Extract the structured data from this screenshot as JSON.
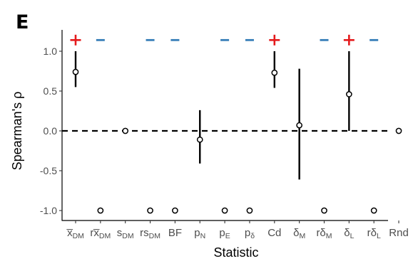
{
  "chart_data": {
    "type": "scatter",
    "panel_label": "E",
    "xlabel": "Statistic",
    "ylabel": "Spearman's ρ",
    "ylim": [
      -1.12,
      1.22
    ],
    "yticks": [
      -1.0,
      -0.5,
      0.0,
      0.5,
      1.0
    ],
    "ytick_labels": [
      "-1.0",
      "-0.5",
      "0.0",
      "0.5",
      "1.0"
    ],
    "reference_line": {
      "y": 0,
      "style": "dashed"
    },
    "grid": false,
    "categories": [
      {
        "base": "x̅",
        "sub": "DM"
      },
      {
        "base": "rx̅",
        "sub": "DM"
      },
      {
        "base": "s",
        "sub": "DM"
      },
      {
        "base": "rs",
        "sub": "DM"
      },
      {
        "base": "BF",
        "sub": ""
      },
      {
        "base": "p",
        "sub": "N"
      },
      {
        "base": "p",
        "sub": "E"
      },
      {
        "base": "p",
        "sub": "δ"
      },
      {
        "base": "Cd",
        "sub": ""
      },
      {
        "base": "δ",
        "sub": "M"
      },
      {
        "base": "rδ",
        "sub": "M"
      },
      {
        "base": "δ",
        "sub": "L"
      },
      {
        "base": "rδ",
        "sub": "L"
      },
      {
        "base": "Rnd",
        "sub": ""
      }
    ],
    "values": [
      0.74,
      -1.0,
      0.0,
      -1.0,
      -1.0,
      -0.11,
      -1.0,
      -1.0,
      0.73,
      0.07,
      -1.0,
      0.46,
      -1.0,
      0.0
    ],
    "ci_low": [
      0.55,
      null,
      null,
      null,
      null,
      -0.41,
      null,
      null,
      0.54,
      -0.61,
      null,
      0.0,
      null,
      null
    ],
    "ci_high": [
      1.0,
      null,
      null,
      null,
      null,
      0.26,
      null,
      null,
      1.0,
      0.78,
      null,
      1.0,
      null,
      null
    ],
    "significance": [
      "+",
      "–",
      "",
      "–",
      "–",
      "",
      "–",
      "–",
      "+",
      "",
      "–",
      "+",
      "–",
      ""
    ],
    "significance_colors": {
      "+": "#e41a1c",
      "–": "#377eb8"
    }
  }
}
